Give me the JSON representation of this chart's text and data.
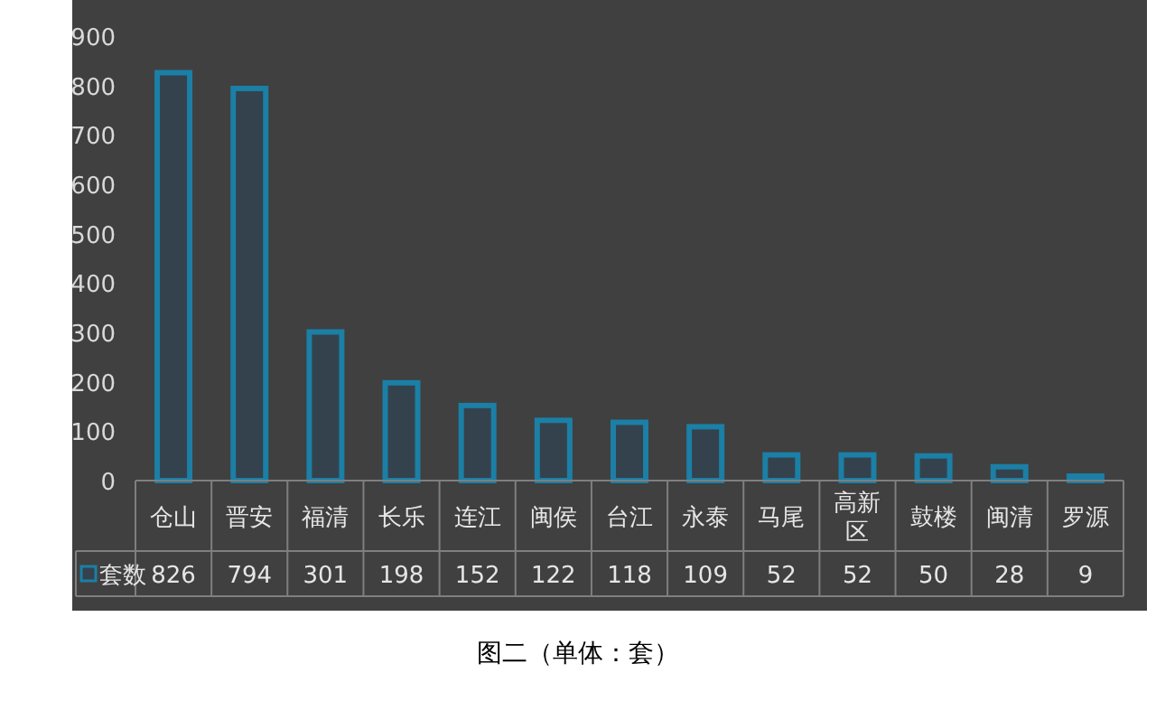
{
  "chart_data": {
    "type": "bar",
    "categories": [
      "仓山",
      "晋安",
      "福清",
      "长乐",
      "连江",
      "闽侯",
      "台江",
      "永泰",
      "马尾",
      "高新区",
      "鼓楼",
      "闽清",
      "罗源"
    ],
    "series": [
      {
        "name": "套数",
        "color": "#1b7fa6",
        "values": [
          826,
          794,
          301,
          198,
          152,
          122,
          118,
          109,
          52,
          52,
          50,
          28,
          9
        ]
      }
    ],
    "ylim": [
      0,
      900
    ],
    "yticks": [
      0,
      100,
      200,
      300,
      400,
      500,
      600,
      700,
      800,
      900
    ],
    "grid": false,
    "legend": "bottom",
    "data_labels": true,
    "annotations": [
      "图二（单体：套）"
    ]
  }
}
